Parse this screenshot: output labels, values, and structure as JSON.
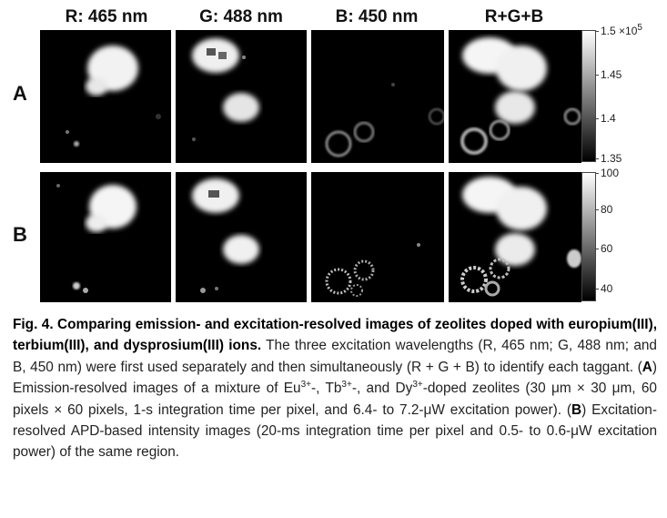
{
  "columns": [
    "R: 465 nm",
    "G: 488 nm",
    "B: 450 nm",
    "R+G+B"
  ],
  "rows": [
    "A",
    "B"
  ],
  "colorbar_a": {
    "top_label": "1.5 ×10",
    "top_exp": "5",
    "ticks": [
      "1.45",
      "1.4",
      "1.35"
    ]
  },
  "colorbar_b": {
    "ticks": [
      "100",
      "80",
      "60",
      "40"
    ]
  },
  "caption": {
    "title": "Fig. 4. Comparing emission- and excitation-resolved images of zeolites doped with europium(III), terbium(III), and dysprosium(III) ions.",
    "s1": " The three excitation wavelengths (R, 465 nm; G, 488 nm; and B, 450 nm) were first used separately and then simultaneously (R + G + B) to identify each taggant. (",
    "a": "A",
    "s2": ") Emission-resolved images of a mixture of Eu",
    "sup1": "3+",
    "s3": "-, Tb",
    "sup2": "3+",
    "s4": "-, and Dy",
    "sup3": "3+",
    "s5": "-doped zeolites (30 μm × 30 μm, 60 pixels × 60 pixels, 1-s integration time per pixel, and 6.4- to 7.2-μW excitation power). (",
    "b": "B",
    "s6": ") Excitation-resolved APD-based intensity images (20-ms integration time per pixel and 0.5- to 0.6-μW excitation power) of the same region."
  }
}
